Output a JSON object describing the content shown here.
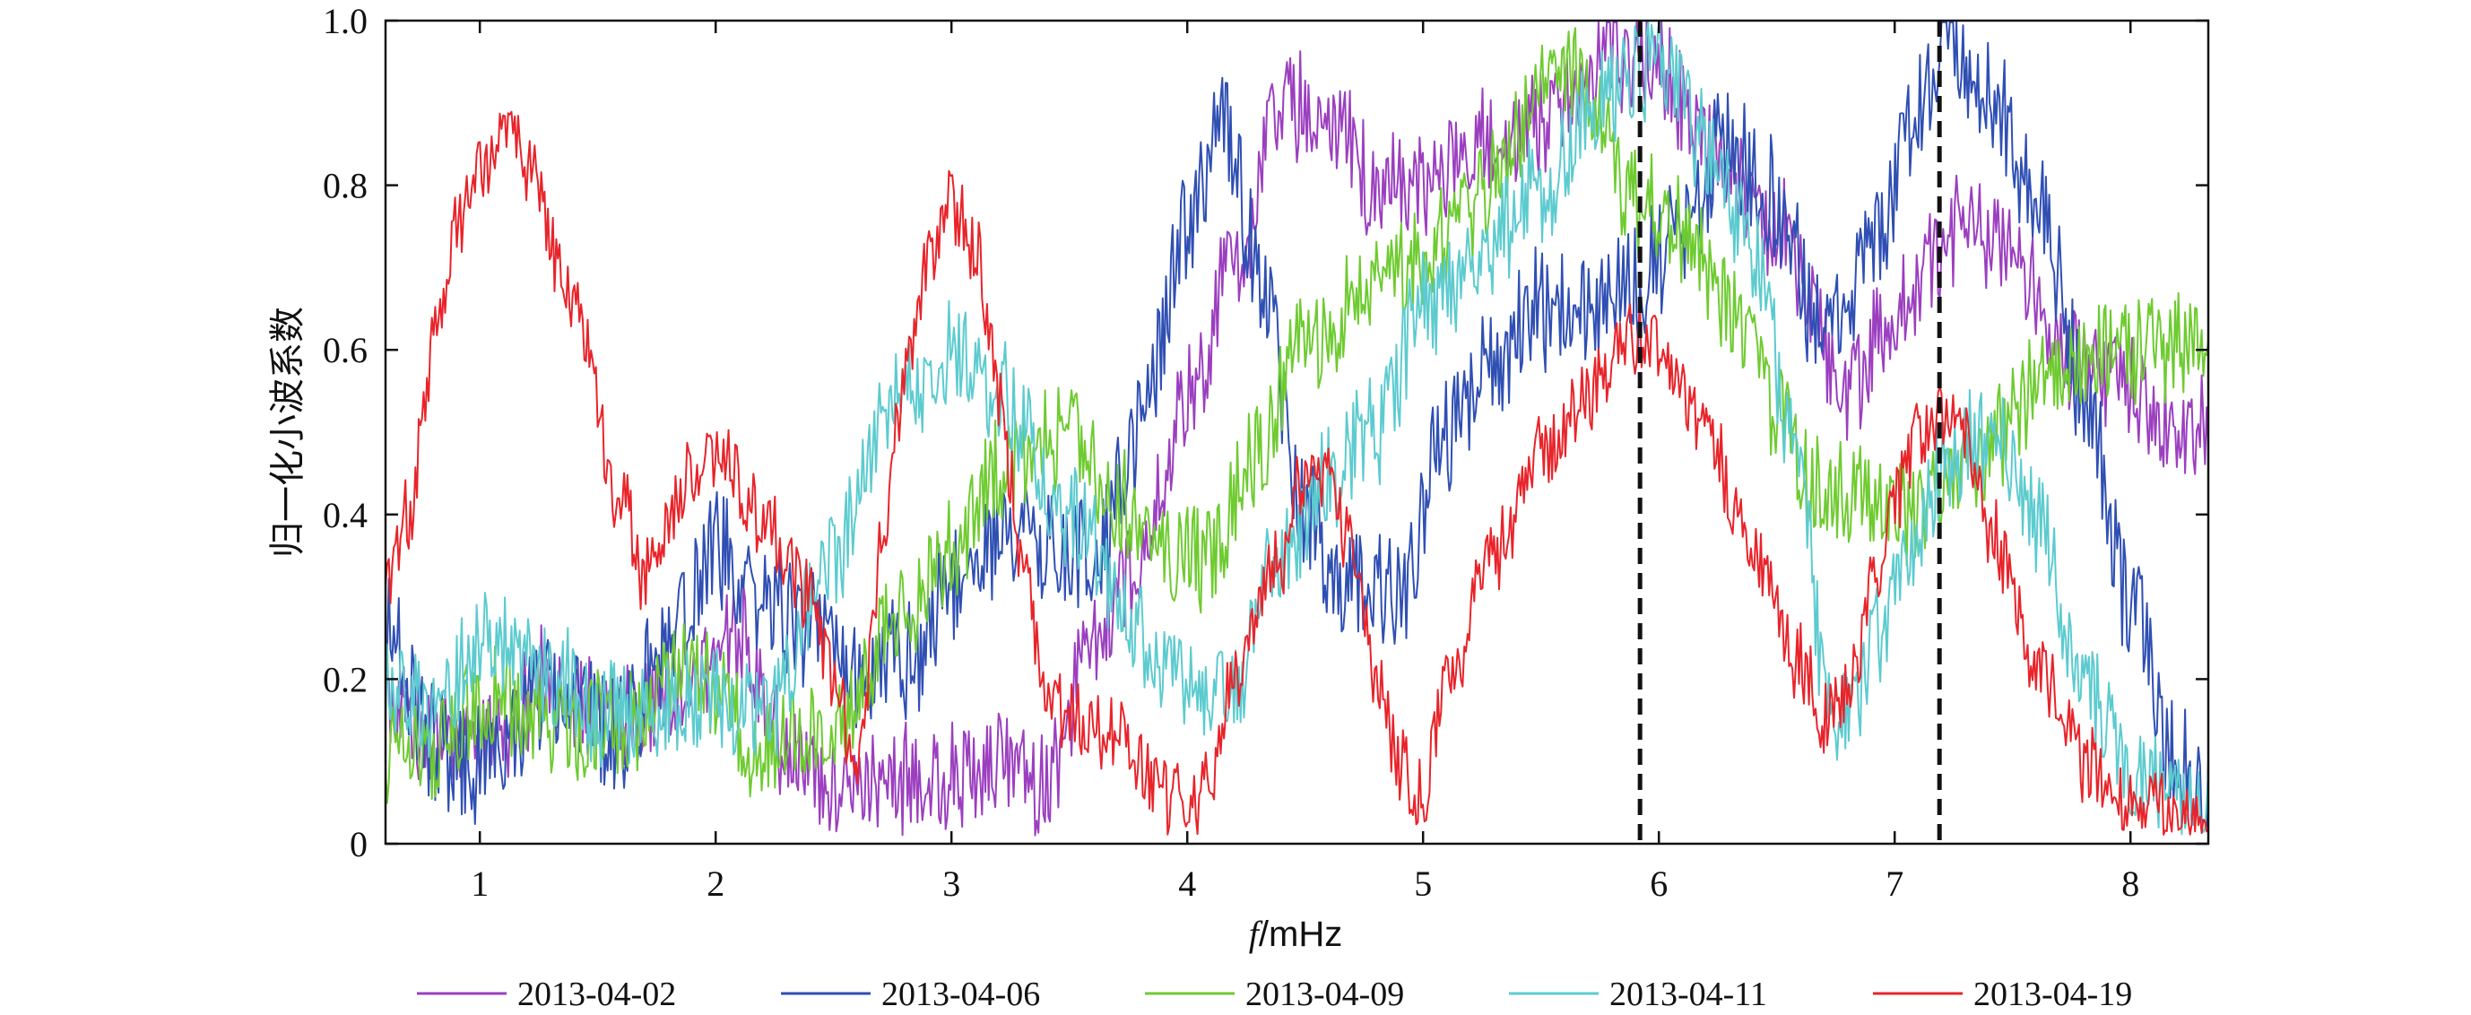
{
  "chart_data": {
    "type": "line",
    "title": "",
    "xlabel_italic": "f",
    "xlabel_rest": "/mHz",
    "ylabel": "归一化小波系数",
    "xlim": [
      0.6,
      8.33
    ],
    "ylim": [
      0,
      1.0
    ],
    "xticks": [
      1,
      2,
      3,
      4,
      5,
      6,
      7,
      8
    ],
    "yticks": [
      0,
      0.2,
      0.4,
      0.6,
      0.8,
      1.0
    ],
    "ytick_labels": [
      "0",
      "0.2",
      "0.4",
      "0.6",
      "0.8",
      "1.0"
    ],
    "xtick_labels": [
      "1",
      "2",
      "3",
      "4",
      "5",
      "6",
      "7",
      "8"
    ],
    "grid": false,
    "legend_position": "bottom",
    "reference_lines_x": [
      5.92,
      7.19
    ],
    "series": [
      {
        "name": "2013-04-02",
        "color": "#9b3fbf",
        "amp": 0.07,
        "points": [
          [
            0.6,
            0.18
          ],
          [
            0.8,
            0.12
          ],
          [
            1.0,
            0.12
          ],
          [
            1.3,
            0.2
          ],
          [
            1.6,
            0.15
          ],
          [
            1.9,
            0.2
          ],
          [
            2.1,
            0.25
          ],
          [
            2.3,
            0.12
          ],
          [
            2.5,
            0.06
          ],
          [
            2.8,
            0.08
          ],
          [
            3.0,
            0.08
          ],
          [
            3.2,
            0.1
          ],
          [
            3.4,
            0.07
          ],
          [
            3.6,
            0.25
          ],
          [
            3.8,
            0.35
          ],
          [
            4.0,
            0.55
          ],
          [
            4.2,
            0.7
          ],
          [
            4.4,
            0.9
          ],
          [
            4.6,
            0.88
          ],
          [
            4.8,
            0.8
          ],
          [
            5.0,
            0.8
          ],
          [
            5.2,
            0.85
          ],
          [
            5.5,
            0.88
          ],
          [
            5.8,
            0.95
          ],
          [
            6.0,
            0.95
          ],
          [
            6.2,
            0.85
          ],
          [
            6.5,
            0.75
          ],
          [
            6.8,
            0.55
          ],
          [
            7.0,
            0.65
          ],
          [
            7.3,
            0.75
          ],
          [
            7.5,
            0.72
          ],
          [
            7.7,
            0.6
          ],
          [
            8.0,
            0.55
          ],
          [
            8.2,
            0.5
          ],
          [
            8.33,
            0.52
          ]
        ]
      },
      {
        "name": "2013-04-06",
        "color": "#2f4fb3",
        "amp": 0.08,
        "points": [
          [
            0.6,
            0.25
          ],
          [
            0.8,
            0.12
          ],
          [
            1.0,
            0.1
          ],
          [
            1.3,
            0.18
          ],
          [
            1.6,
            0.14
          ],
          [
            1.8,
            0.25
          ],
          [
            2.0,
            0.35
          ],
          [
            2.2,
            0.3
          ],
          [
            2.4,
            0.25
          ],
          [
            2.6,
            0.2
          ],
          [
            2.8,
            0.22
          ],
          [
            3.0,
            0.3
          ],
          [
            3.2,
            0.38
          ],
          [
            3.4,
            0.35
          ],
          [
            3.6,
            0.35
          ],
          [
            3.8,
            0.5
          ],
          [
            4.0,
            0.75
          ],
          [
            4.15,
            0.88
          ],
          [
            4.3,
            0.7
          ],
          [
            4.5,
            0.4
          ],
          [
            4.7,
            0.3
          ],
          [
            4.9,
            0.3
          ],
          [
            5.1,
            0.5
          ],
          [
            5.3,
            0.6
          ],
          [
            5.5,
            0.65
          ],
          [
            5.7,
            0.65
          ],
          [
            5.9,
            0.68
          ],
          [
            6.1,
            0.75
          ],
          [
            6.3,
            0.85
          ],
          [
            6.5,
            0.78
          ],
          [
            6.7,
            0.62
          ],
          [
            6.9,
            0.72
          ],
          [
            7.1,
            0.88
          ],
          [
            7.2,
            0.98
          ],
          [
            7.4,
            0.92
          ],
          [
            7.6,
            0.8
          ],
          [
            7.8,
            0.55
          ],
          [
            8.0,
            0.3
          ],
          [
            8.2,
            0.1
          ],
          [
            8.33,
            0.04
          ]
        ]
      },
      {
        "name": "2013-04-09",
        "color": "#6ecb30",
        "amp": 0.07,
        "points": [
          [
            0.6,
            0.1
          ],
          [
            0.8,
            0.12
          ],
          [
            1.0,
            0.18
          ],
          [
            1.3,
            0.15
          ],
          [
            1.6,
            0.14
          ],
          [
            1.9,
            0.2
          ],
          [
            2.2,
            0.12
          ],
          [
            2.5,
            0.15
          ],
          [
            2.8,
            0.28
          ],
          [
            3.0,
            0.35
          ],
          [
            3.2,
            0.45
          ],
          [
            3.5,
            0.5
          ],
          [
            3.7,
            0.42
          ],
          [
            3.9,
            0.35
          ],
          [
            4.1,
            0.35
          ],
          [
            4.3,
            0.48
          ],
          [
            4.5,
            0.6
          ],
          [
            4.7,
            0.65
          ],
          [
            4.9,
            0.7
          ],
          [
            5.1,
            0.75
          ],
          [
            5.3,
            0.8
          ],
          [
            5.5,
            0.9
          ],
          [
            5.6,
            0.95
          ],
          [
            5.7,
            0.92
          ],
          [
            5.9,
            0.78
          ],
          [
            6.1,
            0.75
          ],
          [
            6.3,
            0.65
          ],
          [
            6.5,
            0.52
          ],
          [
            6.7,
            0.42
          ],
          [
            6.9,
            0.42
          ],
          [
            7.1,
            0.4
          ],
          [
            7.3,
            0.45
          ],
          [
            7.6,
            0.55
          ],
          [
            7.9,
            0.6
          ],
          [
            8.1,
            0.6
          ],
          [
            8.33,
            0.6
          ]
        ]
      },
      {
        "name": "2013-04-11",
        "color": "#5ccbcf",
        "amp": 0.07,
        "points": [
          [
            0.6,
            0.2
          ],
          [
            0.8,
            0.15
          ],
          [
            1.0,
            0.25
          ],
          [
            1.3,
            0.2
          ],
          [
            1.6,
            0.15
          ],
          [
            1.9,
            0.18
          ],
          [
            2.2,
            0.15
          ],
          [
            2.5,
            0.35
          ],
          [
            2.8,
            0.55
          ],
          [
            3.0,
            0.6
          ],
          [
            3.2,
            0.55
          ],
          [
            3.5,
            0.4
          ],
          [
            3.8,
            0.25
          ],
          [
            4.0,
            0.2
          ],
          [
            4.2,
            0.2
          ],
          [
            4.4,
            0.35
          ],
          [
            4.6,
            0.45
          ],
          [
            4.8,
            0.5
          ],
          [
            5.0,
            0.65
          ],
          [
            5.2,
            0.7
          ],
          [
            5.5,
            0.8
          ],
          [
            5.8,
            0.92
          ],
          [
            6.0,
            0.95
          ],
          [
            6.2,
            0.85
          ],
          [
            6.4,
            0.72
          ],
          [
            6.6,
            0.45
          ],
          [
            6.7,
            0.2
          ],
          [
            6.8,
            0.15
          ],
          [
            7.0,
            0.3
          ],
          [
            7.2,
            0.45
          ],
          [
            7.4,
            0.5
          ],
          [
            7.6,
            0.4
          ],
          [
            7.8,
            0.2
          ],
          [
            8.0,
            0.08
          ],
          [
            8.2,
            0.05
          ],
          [
            8.33,
            0.04
          ]
        ]
      },
      {
        "name": "2013-04-19",
        "color": "#e8242a",
        "amp": 0.05,
        "points": [
          [
            0.6,
            0.3
          ],
          [
            0.7,
            0.4
          ],
          [
            0.8,
            0.6
          ],
          [
            0.9,
            0.75
          ],
          [
            1.0,
            0.82
          ],
          [
            1.1,
            0.88
          ],
          [
            1.2,
            0.82
          ],
          [
            1.4,
            0.65
          ],
          [
            1.6,
            0.42
          ],
          [
            1.7,
            0.32
          ],
          [
            1.8,
            0.4
          ],
          [
            1.9,
            0.45
          ],
          [
            2.0,
            0.48
          ],
          [
            2.2,
            0.4
          ],
          [
            2.4,
            0.3
          ],
          [
            2.5,
            0.2
          ],
          [
            2.6,
            0.08
          ],
          [
            2.7,
            0.35
          ],
          [
            2.8,
            0.55
          ],
          [
            2.9,
            0.7
          ],
          [
            3.0,
            0.78
          ],
          [
            3.1,
            0.72
          ],
          [
            3.2,
            0.55
          ],
          [
            3.3,
            0.35
          ],
          [
            3.4,
            0.2
          ],
          [
            3.5,
            0.15
          ],
          [
            3.7,
            0.13
          ],
          [
            3.9,
            0.06
          ],
          [
            4.0,
            0.04
          ],
          [
            4.1,
            0.08
          ],
          [
            4.2,
            0.2
          ],
          [
            4.4,
            0.35
          ],
          [
            4.5,
            0.45
          ],
          [
            4.6,
            0.45
          ],
          [
            4.7,
            0.35
          ],
          [
            4.8,
            0.2
          ],
          [
            4.9,
            0.1
          ],
          [
            5.0,
            0.06
          ],
          [
            5.1,
            0.2
          ],
          [
            5.3,
            0.35
          ],
          [
            5.5,
            0.48
          ],
          [
            5.7,
            0.55
          ],
          [
            5.9,
            0.62
          ],
          [
            6.0,
            0.6
          ],
          [
            6.2,
            0.5
          ],
          [
            6.4,
            0.35
          ],
          [
            6.6,
            0.22
          ],
          [
            6.7,
            0.16
          ],
          [
            6.8,
            0.18
          ],
          [
            6.9,
            0.3
          ],
          [
            7.0,
            0.42
          ],
          [
            7.1,
            0.5
          ],
          [
            7.2,
            0.52
          ],
          [
            7.3,
            0.48
          ],
          [
            7.4,
            0.38
          ],
          [
            7.6,
            0.22
          ],
          [
            7.8,
            0.1
          ],
          [
            8.0,
            0.05
          ],
          [
            8.2,
            0.03
          ],
          [
            8.33,
            0.02
          ]
        ]
      }
    ]
  }
}
